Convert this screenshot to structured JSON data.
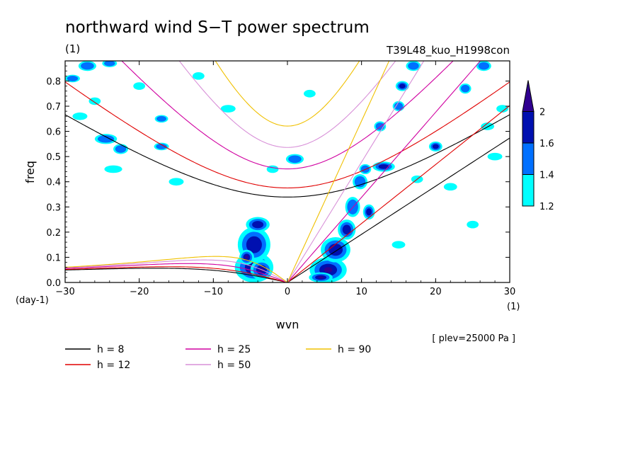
{
  "chart_data": {
    "type": "heatmap",
    "title": "northward wind S−T power spectrum",
    "subtitle_left": "(1)",
    "subtitle_right": "T39L48_kuo_H1998con",
    "xlabel": "wvn",
    "ylabel": "freq",
    "x_unit": "(1)",
    "y_unit": "(day-1)",
    "xlim": [
      -30,
      30
    ],
    "ylim": [
      0,
      0.88
    ],
    "xticks": [
      -30,
      -20,
      -10,
      0,
      10,
      20,
      30
    ],
    "yticks": [
      0.0,
      0.1,
      0.2,
      0.3,
      0.4,
      0.5,
      0.6,
      0.7,
      0.8
    ],
    "xtick_labels": [
      "−30",
      "−20",
      "−10",
      "0",
      "10",
      "20",
      "30"
    ],
    "ytick_labels": [
      "0.0",
      "0.1",
      "0.2",
      "0.3",
      "0.4",
      "0.5",
      "0.6",
      "0.7",
      "0.8"
    ],
    "note": "[ plev=25000 Pa ]",
    "colorbar": {
      "levels": [
        1.2,
        1.4,
        1.6,
        2
      ],
      "labels": [
        "1.2",
        "1.4",
        "1.6",
        "2"
      ],
      "colors": [
        "#00ffff",
        "#0070ff",
        "#0010b0",
        "#300090"
      ]
    },
    "dispersion_curves": [
      {
        "h": 8,
        "label": "h =  8",
        "color": "#000000"
      },
      {
        "h": 12,
        "label": "h = 12",
        "color": "#e00000"
      },
      {
        "h": 25,
        "label": "h = 25",
        "color": "#d000a0"
      },
      {
        "h": 50,
        "label": "h = 50",
        "color": "#d890d8"
      },
      {
        "h": 90,
        "label": "h = 90",
        "color": "#f0c000"
      }
    ],
    "blobs": [
      {
        "x": -4.5,
        "y": 0.06,
        "rx": 2.6,
        "ry": 0.06,
        "lev": 3
      },
      {
        "x": -4.5,
        "y": 0.15,
        "rx": 2.2,
        "ry": 0.07,
        "lev": 2
      },
      {
        "x": -4.0,
        "y": 0.23,
        "rx": 1.6,
        "ry": 0.03,
        "lev": 2
      },
      {
        "x": -3.5,
        "y": 0.05,
        "rx": 1.5,
        "ry": 0.04,
        "lev": 3
      },
      {
        "x": -5.5,
        "y": 0.1,
        "rx": 1.0,
        "ry": 0.03,
        "lev": 3
      },
      {
        "x": 5.5,
        "y": 0.05,
        "rx": 2.5,
        "ry": 0.05,
        "lev": 3
      },
      {
        "x": 6.5,
        "y": 0.13,
        "rx": 2.0,
        "ry": 0.05,
        "lev": 2
      },
      {
        "x": 4.5,
        "y": 0.02,
        "rx": 1.6,
        "ry": 0.02,
        "lev": 3
      },
      {
        "x": 8.0,
        "y": 0.21,
        "rx": 1.2,
        "ry": 0.04,
        "lev": 2
      },
      {
        "x": 8.8,
        "y": 0.3,
        "rx": 1.0,
        "ry": 0.04,
        "lev": 1
      },
      {
        "x": 9.8,
        "y": 0.4,
        "rx": 1.0,
        "ry": 0.03,
        "lev": 1
      },
      {
        "x": 11.0,
        "y": 0.28,
        "rx": 0.8,
        "ry": 0.03,
        "lev": 2
      },
      {
        "x": 10.5,
        "y": 0.45,
        "rx": 0.8,
        "ry": 0.02,
        "lev": 1
      },
      {
        "x": 13.0,
        "y": 0.46,
        "rx": 1.5,
        "ry": 0.02,
        "lev": 2
      },
      {
        "x": 12.5,
        "y": 0.62,
        "rx": 0.8,
        "ry": 0.02,
        "lev": 1
      },
      {
        "x": 15.0,
        "y": 0.7,
        "rx": 0.8,
        "ry": 0.02,
        "lev": 1
      },
      {
        "x": 15.5,
        "y": 0.78,
        "rx": 0.9,
        "ry": 0.02,
        "lev": 2
      },
      {
        "x": 17.0,
        "y": 0.86,
        "rx": 1.0,
        "ry": 0.02,
        "lev": 1
      },
      {
        "x": 20.0,
        "y": 0.54,
        "rx": 0.9,
        "ry": 0.02,
        "lev": 2
      },
      {
        "x": 17.5,
        "y": 0.41,
        "rx": 0.8,
        "ry": 0.015,
        "lev": 0
      },
      {
        "x": 22.0,
        "y": 0.38,
        "rx": 0.9,
        "ry": 0.015,
        "lev": 0
      },
      {
        "x": 24.0,
        "y": 0.77,
        "rx": 0.8,
        "ry": 0.02,
        "lev": 1
      },
      {
        "x": 26.5,
        "y": 0.86,
        "rx": 1.0,
        "ry": 0.02,
        "lev": 1
      },
      {
        "x": 28.0,
        "y": 0.5,
        "rx": 1.0,
        "ry": 0.015,
        "lev": 0
      },
      {
        "x": 27.0,
        "y": 0.62,
        "rx": 0.9,
        "ry": 0.015,
        "lev": 0
      },
      {
        "x": 29.0,
        "y": 0.69,
        "rx": 0.8,
        "ry": 0.015,
        "lev": 0
      },
      {
        "x": 25.0,
        "y": 0.23,
        "rx": 0.8,
        "ry": 0.015,
        "lev": 0
      },
      {
        "x": 15.0,
        "y": 0.15,
        "rx": 0.9,
        "ry": 0.015,
        "lev": 0
      },
      {
        "x": -29.0,
        "y": 0.81,
        "rx": 1.0,
        "ry": 0.015,
        "lev": 1
      },
      {
        "x": -27.0,
        "y": 0.86,
        "rx": 1.2,
        "ry": 0.02,
        "lev": 1
      },
      {
        "x": -24.0,
        "y": 0.87,
        "rx": 1.0,
        "ry": 0.015,
        "lev": 1
      },
      {
        "x": -24.5,
        "y": 0.57,
        "rx": 1.5,
        "ry": 0.02,
        "lev": 1
      },
      {
        "x": -22.5,
        "y": 0.53,
        "rx": 1.0,
        "ry": 0.02,
        "lev": 1
      },
      {
        "x": -23.5,
        "y": 0.45,
        "rx": 1.2,
        "ry": 0.015,
        "lev": 0
      },
      {
        "x": -17.0,
        "y": 0.54,
        "rx": 1.0,
        "ry": 0.015,
        "lev": 1
      },
      {
        "x": -17.0,
        "y": 0.65,
        "rx": 0.9,
        "ry": 0.015,
        "lev": 1
      },
      {
        "x": -20.0,
        "y": 0.78,
        "rx": 0.8,
        "ry": 0.015,
        "lev": 0
      },
      {
        "x": -12.0,
        "y": 0.82,
        "rx": 0.8,
        "ry": 0.015,
        "lev": 0
      },
      {
        "x": -15.0,
        "y": 0.4,
        "rx": 1.0,
        "ry": 0.015,
        "lev": 0
      },
      {
        "x": -8.0,
        "y": 0.69,
        "rx": 1.0,
        "ry": 0.015,
        "lev": 0
      },
      {
        "x": 1.0,
        "y": 0.49,
        "rx": 1.2,
        "ry": 0.02,
        "lev": 1
      },
      {
        "x": 3.0,
        "y": 0.75,
        "rx": 0.8,
        "ry": 0.015,
        "lev": 0
      },
      {
        "x": -2.0,
        "y": 0.45,
        "rx": 0.8,
        "ry": 0.015,
        "lev": 0
      },
      {
        "x": -26.0,
        "y": 0.72,
        "rx": 0.8,
        "ry": 0.015,
        "lev": 0
      },
      {
        "x": -28.0,
        "y": 0.66,
        "rx": 1.0,
        "ry": 0.015,
        "lev": 0
      }
    ]
  },
  "legend": {
    "items": [
      {
        "label": "h =  8",
        "color": "#000000"
      },
      {
        "label": "h = 12",
        "color": "#e00000"
      },
      {
        "label": "h = 25",
        "color": "#d000a0"
      },
      {
        "label": "h = 50",
        "color": "#d890d8"
      },
      {
        "label": "h = 90",
        "color": "#f0c000"
      }
    ]
  }
}
